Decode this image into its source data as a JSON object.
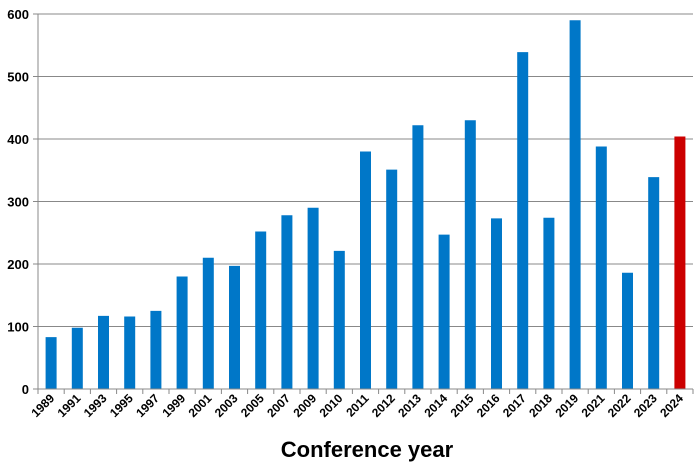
{
  "chart_data": {
    "type": "bar",
    "title": "",
    "xlabel": "Conference year",
    "ylabel": "",
    "ylim": [
      0,
      600
    ],
    "yticks": [
      0,
      100,
      200,
      300,
      400,
      500,
      600
    ],
    "grid": true,
    "categories": [
      "1989",
      "1991",
      "1993",
      "1995",
      "1997",
      "1999",
      "2001",
      "2003",
      "2005",
      "2007",
      "2009",
      "2010",
      "2011",
      "2012",
      "2013",
      "2014",
      "2015",
      "2016",
      "2017",
      "2018",
      "2019",
      "2021",
      "2022",
      "2023",
      "2024"
    ],
    "values": [
      83,
      98,
      117,
      116,
      125,
      180,
      210,
      197,
      252,
      278,
      290,
      221,
      380,
      351,
      422,
      247,
      430,
      273,
      539,
      274,
      590,
      388,
      186,
      339,
      404
    ],
    "colors": {
      "default": "#0077C8",
      "highlight": "#CC0000"
    },
    "highlight_category": "2024"
  }
}
